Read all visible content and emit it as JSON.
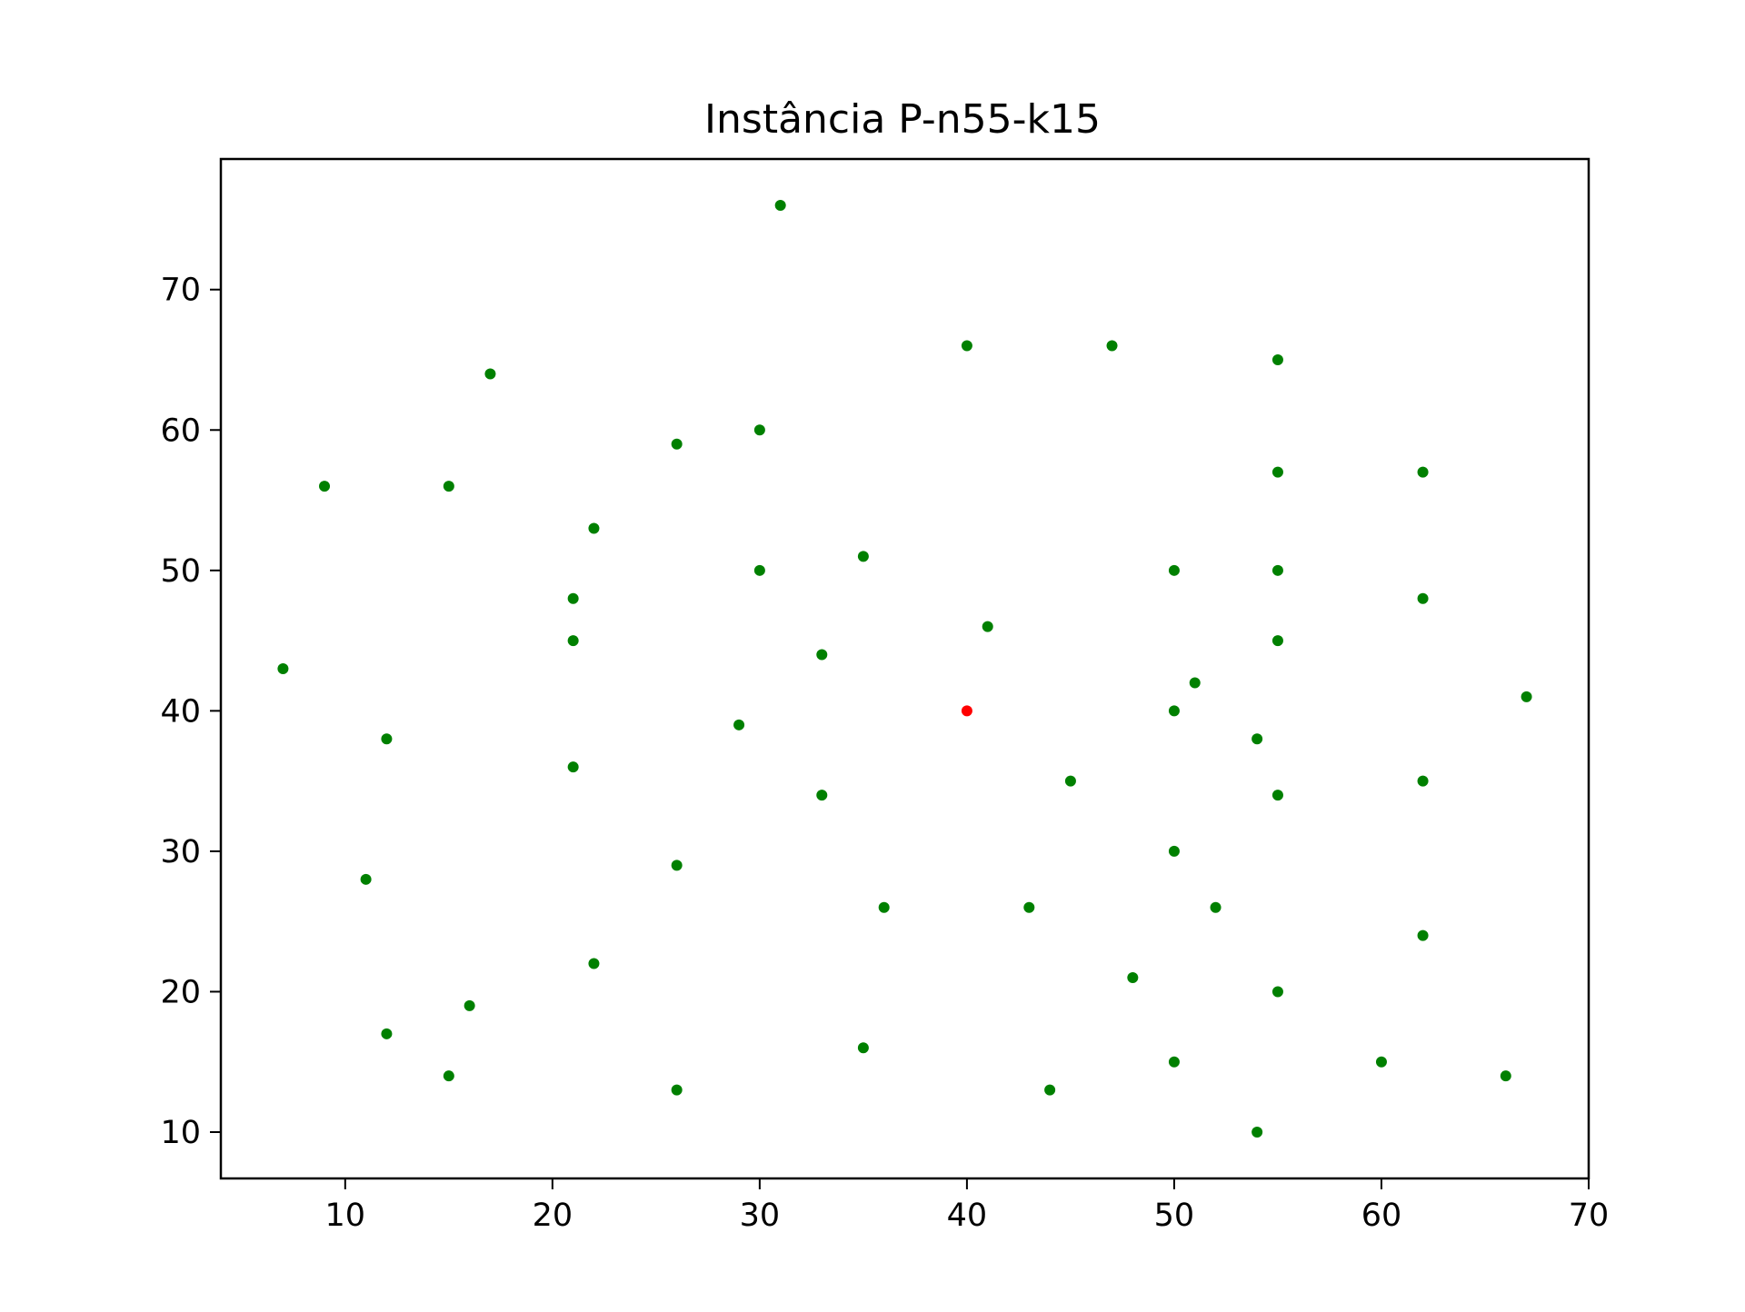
{
  "chart_data": {
    "type": "scatter",
    "title": "Instância P-n55-k15",
    "xlabel": "",
    "ylabel": "",
    "xlim": [
      4,
      70
    ],
    "ylim": [
      6.7,
      79.3
    ],
    "xticks": [
      10,
      20,
      30,
      40,
      50,
      60,
      70
    ],
    "yticks": [
      10,
      20,
      30,
      40,
      50,
      60,
      70
    ],
    "grid": false,
    "depot": {
      "color": "#ff0000",
      "points": [
        [
          40,
          40
        ]
      ]
    },
    "customers": {
      "color": "#008000",
      "points": [
        [
          31,
          76
        ],
        [
          40,
          66
        ],
        [
          47,
          66
        ],
        [
          55,
          65
        ],
        [
          17,
          64
        ],
        [
          30,
          60
        ],
        [
          26,
          59
        ],
        [
          55,
          57
        ],
        [
          62,
          57
        ],
        [
          9,
          56
        ],
        [
          15,
          56
        ],
        [
          22,
          53
        ],
        [
          35,
          51
        ],
        [
          30,
          50
        ],
        [
          50,
          50
        ],
        [
          55,
          50
        ],
        [
          21,
          48
        ],
        [
          62,
          48
        ],
        [
          41,
          46
        ],
        [
          21,
          45
        ],
        [
          55,
          45
        ],
        [
          33,
          44
        ],
        [
          7,
          43
        ],
        [
          51,
          42
        ],
        [
          67,
          41
        ],
        [
          50,
          40
        ],
        [
          29,
          39
        ],
        [
          12,
          38
        ],
        [
          54,
          38
        ],
        [
          21,
          36
        ],
        [
          45,
          35
        ],
        [
          62,
          35
        ],
        [
          33,
          34
        ],
        [
          55,
          34
        ],
        [
          50,
          30
        ],
        [
          26,
          29
        ],
        [
          11,
          28
        ],
        [
          36,
          26
        ],
        [
          43,
          26
        ],
        [
          52,
          26
        ],
        [
          62,
          24
        ],
        [
          22,
          22
        ],
        [
          48,
          21
        ],
        [
          55,
          20
        ],
        [
          16,
          19
        ],
        [
          12,
          17
        ],
        [
          35,
          16
        ],
        [
          50,
          15
        ],
        [
          60,
          15
        ],
        [
          15,
          14
        ],
        [
          66,
          14
        ],
        [
          26,
          13
        ],
        [
          44,
          13
        ],
        [
          54,
          10
        ]
      ]
    }
  }
}
